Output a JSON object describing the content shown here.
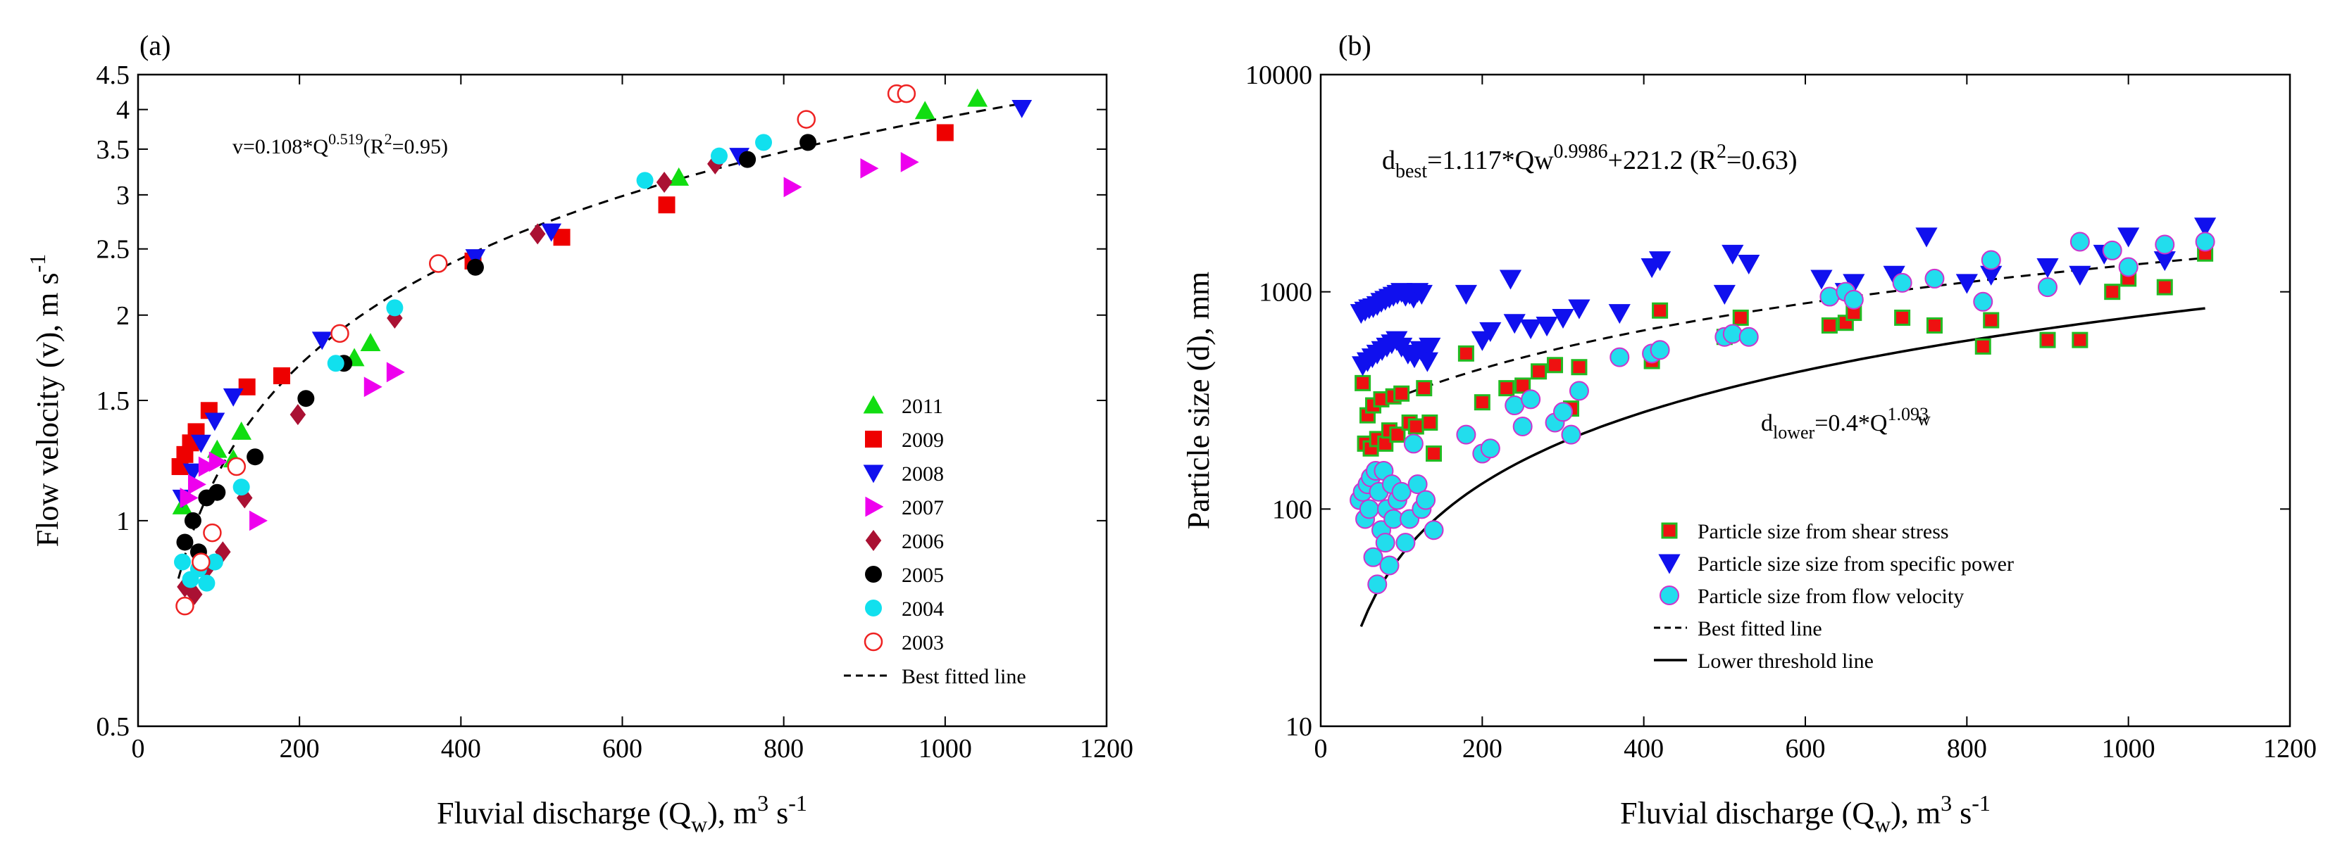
{
  "chart_data": [
    {
      "type": "scatter",
      "panel_label": "(a)",
      "xscale": "linear",
      "yscale": "log",
      "xlim": [
        0,
        1200
      ],
      "ylim": [
        0.5,
        4.5
      ],
      "xticks": [
        0,
        200,
        400,
        600,
        800,
        1000,
        1200
      ],
      "xtick_labels": [
        "0",
        "200",
        "400",
        "600",
        "800",
        "1000",
        "1200"
      ],
      "yticks": [
        0.5,
        1,
        1.5,
        2,
        2.5,
        3,
        3.5,
        4,
        4.5
      ],
      "ytick_labels": [
        "0.5",
        "1",
        "1.5",
        "2",
        "2.5",
        "3",
        "3.5",
        "4",
        "4.5"
      ],
      "xlabel": {
        "main": "Fluvial discharge (Q",
        "sub": "w",
        "tail": "), m",
        "sup": "3",
        "tail2": " s",
        "sup2": "-1"
      },
      "ylabel": {
        "main": "Flow velocity (v), m s",
        "sup": "-1"
      },
      "equation": {
        "pre": "v=0.108*Q",
        "sup": "0.519",
        "post": "(R",
        "sup2": "2",
        "post2": "=0.95)"
      },
      "fit": {
        "label": "Best fitted line",
        "a": 0.108,
        "b": 0.519,
        "x": [
          50,
          1090
        ]
      },
      "legend_position": "bottom-right",
      "series": [
        {
          "name": "2011",
          "marker": "triangle-up",
          "color": "#11dd11",
          "filled": true,
          "x": [
            55,
            98,
            118,
            128,
            268,
            288,
            670,
            975,
            1040
          ],
          "y": [
            1.05,
            1.27,
            1.23,
            1.35,
            1.73,
            1.82,
            3.18,
            3.98,
            4.15
          ]
        },
        {
          "name": "2009",
          "marker": "square",
          "color": "#ee0000",
          "filled": true,
          "x": [
            52,
            58,
            65,
            72,
            88,
            135,
            178,
            415,
            525,
            655,
            1000
          ],
          "y": [
            1.2,
            1.25,
            1.3,
            1.35,
            1.45,
            1.57,
            1.63,
            2.4,
            2.6,
            2.9,
            3.7
          ]
        },
        {
          "name": "2008",
          "marker": "triangle-down",
          "color": "#1010ee",
          "filled": true,
          "x": [
            55,
            68,
            78,
            95,
            118,
            228,
            418,
            512,
            745,
            1095
          ],
          "y": [
            1.08,
            1.18,
            1.3,
            1.4,
            1.52,
            1.84,
            2.43,
            2.65,
            3.42,
            4.02
          ]
        },
        {
          "name": "2007",
          "marker": "triangle-right",
          "color": "#ee00ee",
          "filled": true,
          "x": [
            62,
            72,
            85,
            98,
            148,
            290,
            318,
            810,
            905,
            955
          ],
          "y": [
            1.08,
            1.13,
            1.2,
            1.22,
            1.0,
            1.57,
            1.65,
            3.08,
            3.28,
            3.35
          ]
        },
        {
          "name": "2006",
          "marker": "diamond",
          "color": "#aa1133",
          "filled": true,
          "x": [
            58,
            70,
            85,
            105,
            132,
            198,
            318,
            495,
            652,
            715
          ],
          "y": [
            0.8,
            0.78,
            0.85,
            0.9,
            1.08,
            1.43,
            1.98,
            2.63,
            3.13,
            3.33
          ]
        },
        {
          "name": "2005",
          "marker": "circle",
          "color": "#000000",
          "filled": true,
          "x": [
            58,
            68,
            75,
            85,
            98,
            145,
            208,
            255,
            418,
            755,
            830
          ],
          "y": [
            0.93,
            1.0,
            0.9,
            1.08,
            1.1,
            1.24,
            1.51,
            1.7,
            2.35,
            3.38,
            3.58
          ]
        },
        {
          "name": "2004",
          "marker": "circle",
          "color": "#11e0ee",
          "filled": true,
          "x": [
            55,
            65,
            75,
            85,
            95,
            128,
            245,
            318,
            628,
            720,
            775
          ],
          "y": [
            0.87,
            0.82,
            0.85,
            0.81,
            0.87,
            1.12,
            1.7,
            2.05,
            3.15,
            3.42,
            3.58
          ]
        },
        {
          "name": "2003",
          "marker": "circle",
          "color": "#ee2222",
          "filled": false,
          "x": [
            58,
            78,
            92,
            122,
            250,
            372,
            828,
            940,
            952
          ],
          "y": [
            0.75,
            0.87,
            0.96,
            1.2,
            1.88,
            2.38,
            3.87,
            4.22,
            4.22
          ]
        }
      ]
    },
    {
      "type": "scatter",
      "panel_label": "(b)",
      "xscale": "linear",
      "yscale": "log",
      "xlim": [
        0,
        1200
      ],
      "ylim": [
        10,
        10000
      ],
      "xticks": [
        0,
        200,
        400,
        600,
        800,
        1000,
        1200
      ],
      "xtick_labels": [
        "0",
        "200",
        "400",
        "600",
        "800",
        "1000",
        "1200"
      ],
      "yticks": [
        10,
        100,
        1000,
        10000
      ],
      "ytick_labels": [
        "10",
        "100",
        "1000",
        "10000"
      ],
      "xlabel": {
        "main": "Fluvial discharge (Q",
        "sub": "w",
        "tail": "), m",
        "sup": "3",
        "tail2": " s",
        "sup2": "-1"
      },
      "ylabel": {
        "main": "Particle size (d), mm"
      },
      "equation_best": {
        "pre": "d",
        "sub": "best",
        "mid": "=1.117*Qw",
        "sup": "0.9986",
        "post": "+221.2 (R",
        "sup2": "2",
        "post2": "=0.63)"
      },
      "equation_lower": {
        "pre": "d",
        "sub": "lower",
        "mid": "=0.4*Q",
        "sup": "1.093",
        "sub2": "w"
      },
      "best_fit": {
        "label": "Best fitted line",
        "a": 1.117,
        "b": 0.9986,
        "c": 221.2,
        "x": [
          50,
          1095
        ]
      },
      "lower_threshold": {
        "label": "Lower threshold line",
        "a": 0.4,
        "b": 1.093,
        "x": [
          50,
          1095
        ]
      },
      "legend_position": "bottom-right",
      "series": [
        {
          "name": "Particle size from shear stress",
          "marker": "square",
          "color": "#ee1111",
          "edge": "#22bb22",
          "filled": true,
          "x": [
            52,
            55,
            58,
            62,
            65,
            70,
            75,
            80,
            85,
            90,
            95,
            100,
            110,
            118,
            128,
            135,
            140,
            180,
            200,
            230,
            250,
            270,
            290,
            310,
            320,
            410,
            420,
            500,
            520,
            630,
            650,
            660,
            720,
            760,
            820,
            830,
            900,
            940,
            980,
            1000,
            1045,
            1095
          ],
          "y": [
            380,
            200,
            270,
            190,
            300,
            210,
            320,
            200,
            230,
            330,
            220,
            340,
            250,
            240,
            360,
            250,
            180,
            520,
            310,
            360,
            370,
            430,
            460,
            290,
            450,
            480,
            820,
            620,
            760,
            700,
            720,
            800,
            760,
            700,
            560,
            740,
            600,
            600,
            1000,
            1150,
            1050,
            1500
          ]
        },
        {
          "name": "Particle size size from specific power",
          "marker": "triangle-down",
          "color": "#1010ee",
          "filled": true,
          "x": [
            50,
            55,
            60,
            65,
            70,
            75,
            80,
            85,
            90,
            95,
            100,
            105,
            110,
            115,
            120,
            125,
            130,
            135,
            52,
            58,
            64,
            70,
            76,
            82,
            88,
            94,
            100,
            108,
            116,
            124,
            132,
            180,
            200,
            210,
            235,
            240,
            260,
            280,
            300,
            320,
            370,
            410,
            420,
            500,
            510,
            530,
            620,
            650,
            660,
            710,
            750,
            800,
            830,
            900,
            940,
            970,
            1000,
            1045,
            1095
          ],
          "y": [
            800,
            820,
            840,
            850,
            870,
            900,
            920,
            940,
            960,
            980,
            1000,
            960,
            980,
            940,
            1000,
            980,
            520,
            560,
            460,
            480,
            500,
            520,
            540,
            560,
            580,
            600,
            560,
            520,
            500,
            540,
            480,
            980,
            600,
            660,
            1150,
            720,
            680,
            700,
            760,
            840,
            800,
            1300,
            1400,
            980,
            1500,
            1350,
            1150,
            1000,
            1100,
            1200,
            1800,
            1100,
            1200,
            1300,
            1200,
            1500,
            1800,
            1400,
            2000
          ]
        },
        {
          "name": "Particle size from flow velocity",
          "marker": "circle",
          "color": "#22dded",
          "edge": "#cc33cc",
          "filled": true,
          "x": [
            48,
            52,
            55,
            58,
            60,
            62,
            65,
            68,
            70,
            72,
            75,
            78,
            80,
            82,
            85,
            88,
            90,
            95,
            100,
            105,
            110,
            115,
            120,
            125,
            130,
            140,
            180,
            200,
            210,
            240,
            250,
            260,
            290,
            300,
            310,
            320,
            370,
            410,
            420,
            500,
            510,
            530,
            630,
            650,
            660,
            720,
            760,
            820,
            830,
            900,
            940,
            980,
            1000,
            1045,
            1095
          ],
          "y": [
            110,
            120,
            90,
            130,
            100,
            140,
            60,
            150,
            45,
            120,
            80,
            150,
            70,
            100,
            55,
            130,
            90,
            110,
            120,
            70,
            90,
            200,
            130,
            100,
            110,
            80,
            220,
            180,
            190,
            300,
            240,
            320,
            250,
            280,
            220,
            350,
            500,
            520,
            540,
            620,
            640,
            620,
            950,
            1000,
            920,
            1100,
            1150,
            900,
            1400,
            1050,
            1700,
            1550,
            1300,
            1650,
            1700
          ]
        }
      ]
    }
  ]
}
